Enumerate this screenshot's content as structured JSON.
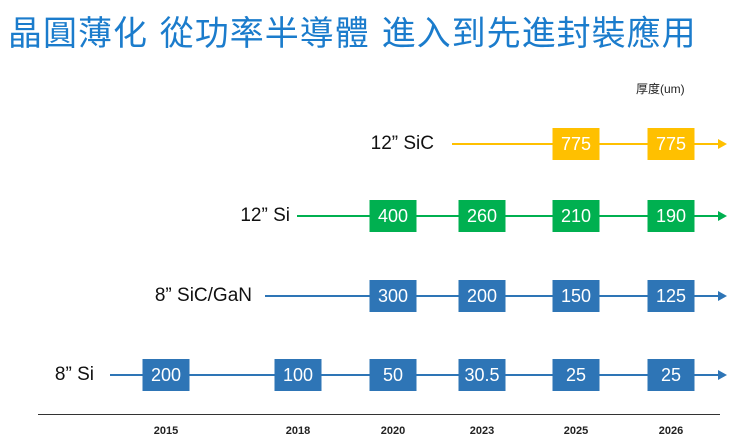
{
  "title": "晶圓薄化 從功率半導體 進入到先進封裝應用",
  "unit_label": "厚度(um)",
  "years": [
    "2015",
    "2018",
    "2020",
    "2023",
    "2025",
    "2026"
  ],
  "rows": [
    {
      "label": "12” SiC",
      "color": "#FFC000",
      "values": {
        "2025": "775",
        "2026": "775"
      }
    },
    {
      "label": "12” Si",
      "color": "#00B050",
      "values": {
        "2020": "400",
        "2023": "260",
        "2025": "210",
        "2026": "190"
      }
    },
    {
      "label": "8” SiC/GaN",
      "color": "#2E75B6",
      "values": {
        "2020": "300",
        "2023": "200",
        "2025": "150",
        "2026": "125"
      }
    },
    {
      "label": "8” Si",
      "color": "#2E75B6",
      "values": {
        "2015": "200",
        "2018": "100",
        "2020": "50",
        "2023": "30.5",
        "2025": "25",
        "2026": "25"
      }
    }
  ]
}
